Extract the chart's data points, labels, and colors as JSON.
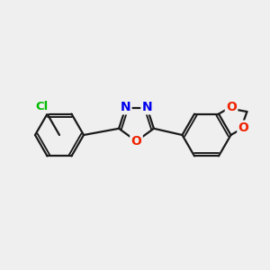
{
  "background_color": "#efefef",
  "bond_color": "#1a1a1a",
  "bond_width": 1.6,
  "atom_colors": {
    "Cl": "#00bb00",
    "N": "#0000ee",
    "O": "#ee2200"
  },
  "font_size_atoms": 10.5
}
